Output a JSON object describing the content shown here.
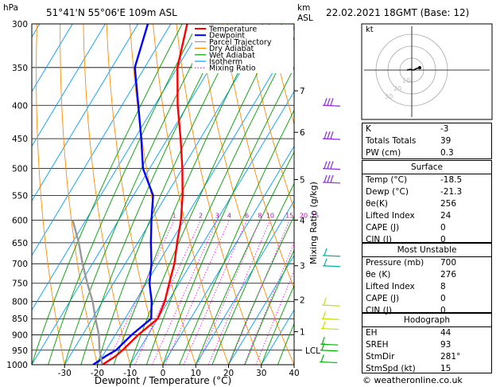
{
  "header": {
    "pressure_unit": "hPa",
    "location": "51°41'N  55°06'E  109m  ASL",
    "height_unit_km": "km",
    "height_unit_asl": "ASL",
    "datetime": "22.02.2021  18GMT  (Base: 12)"
  },
  "chart_data": {
    "type": "skew-t",
    "xlabel": "Dewpoint / Temperature (°C)",
    "ylabel_right": "Mixing Ratio (g/kg)",
    "pressure_levels": [
      300,
      350,
      400,
      450,
      500,
      550,
      600,
      650,
      700,
      750,
      800,
      850,
      900,
      950,
      1000
    ],
    "temperature_ticks": [
      -30,
      -20,
      -10,
      0,
      10,
      20,
      30,
      40
    ],
    "xlim": [
      -40,
      40
    ],
    "ylim_hPa": [
      1000,
      300
    ],
    "height_ticks_km": [
      {
        "km": "1",
        "p": 890
      },
      {
        "km": "2",
        "p": 795
      },
      {
        "km": "3",
        "p": 705
      },
      {
        "km": "4",
        "p": 600
      },
      {
        "km": "5",
        "p": 520
      },
      {
        "km": "6",
        "p": 440
      },
      {
        "km": "7",
        "p": 380
      }
    ],
    "lcl_label": "LCL",
    "lcl_p": 950,
    "mixing_ratio_labels": [
      "1",
      "2",
      "3",
      "4",
      "6",
      "8",
      "10",
      "15",
      "20",
      "25"
    ],
    "legend": [
      {
        "name": "Temperature",
        "color": "#ff0000"
      },
      {
        "name": "Dewpoint",
        "color": "#0000ff"
      },
      {
        "name": "Parcel Trajectory",
        "color": "#999999"
      },
      {
        "name": "Dry Adiabat",
        "color": "#ff8c00"
      },
      {
        "name": "Wet Adiabat",
        "color": "#00a000"
      },
      {
        "name": "Isotherm",
        "color": "#00a0ff"
      },
      {
        "name": "Mixing Ratio",
        "color": "#ff00ff"
      }
    ],
    "series": [
      {
        "name": "Temperature",
        "color": "#ff0000",
        "points": [
          [
            1000,
            -18.5
          ],
          [
            970,
            -16
          ],
          [
            950,
            -15
          ],
          [
            900,
            -13
          ],
          [
            850,
            -10
          ],
          [
            800,
            -11
          ],
          [
            750,
            -13
          ],
          [
            700,
            -15
          ],
          [
            650,
            -18
          ],
          [
            600,
            -21
          ],
          [
            550,
            -25
          ],
          [
            500,
            -30
          ],
          [
            450,
            -36
          ],
          [
            400,
            -43
          ],
          [
            350,
            -50
          ],
          [
            300,
            -55
          ]
        ]
      },
      {
        "name": "Dewpoint",
        "color": "#0000ff",
        "points": [
          [
            1000,
            -21.3
          ],
          [
            970,
            -19
          ],
          [
            950,
            -17
          ],
          [
            900,
            -15
          ],
          [
            850,
            -12
          ],
          [
            800,
            -15
          ],
          [
            750,
            -19
          ],
          [
            700,
            -22
          ],
          [
            650,
            -26
          ],
          [
            600,
            -30
          ],
          [
            550,
            -34
          ],
          [
            500,
            -42
          ],
          [
            450,
            -48
          ],
          [
            400,
            -55
          ],
          [
            350,
            -63
          ],
          [
            300,
            -67
          ]
        ]
      },
      {
        "name": "Parcel Trajectory",
        "color": "#999999",
        "points": [
          [
            1000,
            -18.5
          ],
          [
            950,
            -22
          ],
          [
            900,
            -25
          ],
          [
            850,
            -29
          ],
          [
            800,
            -33
          ],
          [
            750,
            -38
          ],
          [
            700,
            -43
          ],
          [
            650,
            -48
          ],
          [
            600,
            -54
          ]
        ]
      }
    ],
    "wind_barbs_hPa": [
      400,
      450,
      500,
      525,
      680,
      705,
      810,
      850,
      880,
      930,
      950,
      990
    ]
  },
  "hodograph": {
    "label": "kt",
    "ring_labels": [
      "10",
      "20",
      "30"
    ]
  },
  "indices": [
    {
      "label": "K",
      "value": "-3"
    },
    {
      "label": "Totals Totals",
      "value": "39"
    },
    {
      "label": "PW (cm)",
      "value": "0.3"
    }
  ],
  "surface": {
    "title": "Surface",
    "rows": [
      {
        "label": "Temp (°C)",
        "value": "-18.5"
      },
      {
        "label": "Dewp (°C)",
        "value": "-21.3"
      },
      {
        "label": "θe(K)",
        "value": "256"
      },
      {
        "label": "Lifted Index",
        "value": "24"
      },
      {
        "label": "CAPE (J)",
        "value": "0"
      },
      {
        "label": "CIN (J)",
        "value": "0"
      }
    ]
  },
  "most_unstable": {
    "title": "Most Unstable",
    "rows": [
      {
        "label": "Pressure (mb)",
        "value": "700"
      },
      {
        "label": "θe (K)",
        "value": "276"
      },
      {
        "label": "Lifted Index",
        "value": "8"
      },
      {
        "label": "CAPE (J)",
        "value": "0"
      },
      {
        "label": "CIN (J)",
        "value": "0"
      }
    ]
  },
  "hodograph_table": {
    "title": "Hodograph",
    "rows": [
      {
        "label": "EH",
        "value": "44"
      },
      {
        "label": "SREH",
        "value": "93"
      },
      {
        "label": "StmDir",
        "value": "281°"
      },
      {
        "label": "StmSpd (kt)",
        "value": "15"
      }
    ]
  },
  "footer": {
    "copyright": "© weatheronline.co.uk"
  }
}
